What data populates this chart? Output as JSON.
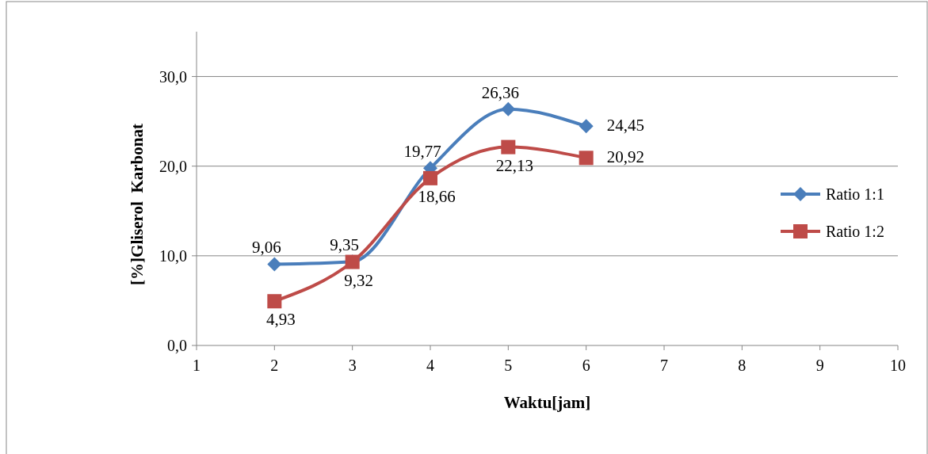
{
  "chart_data": {
    "type": "line",
    "xlabel": "Waktu[jam]",
    "ylabel": "[%]Gliserol  Karbonat",
    "x": [
      2,
      3,
      4,
      5,
      6
    ],
    "series": [
      {
        "name": "Ratio 1:1",
        "color": "#4a7ebb",
        "marker": "diamond",
        "values": [
          9.06,
          9.35,
          19.77,
          26.36,
          24.45
        ],
        "value_labels": [
          "9,06",
          "9,35",
          "19,77",
          "26,36",
          "24,45"
        ]
      },
      {
        "name": "Ratio 1:2",
        "color": "#be4b48",
        "marker": "square",
        "values": [
          4.93,
          9.32,
          18.66,
          22.13,
          20.92
        ],
        "value_labels": [
          "4,93",
          "9,32",
          "18,66",
          "22,13",
          "20,92"
        ]
      }
    ],
    "xlim": [
      1,
      10
    ],
    "xticks": [
      1,
      2,
      3,
      4,
      5,
      6,
      7,
      8,
      9,
      10
    ],
    "ylim": [
      0,
      35
    ],
    "yticks": [
      {
        "value": 0,
        "label": "0,0"
      },
      {
        "value": 10,
        "label": "10,0"
      },
      {
        "value": 20,
        "label": "20,0"
      },
      {
        "value": 30,
        "label": "30,0"
      }
    ],
    "grid": "y",
    "legend": "right"
  }
}
